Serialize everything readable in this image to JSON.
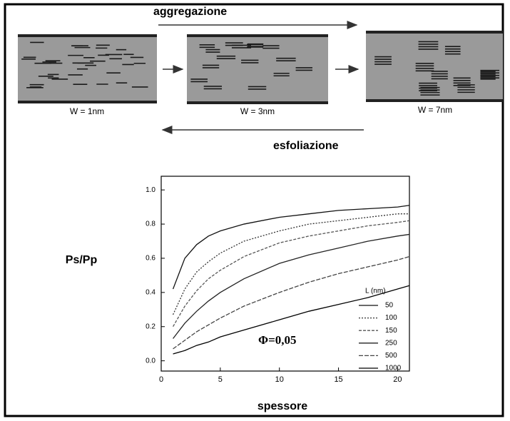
{
  "diagram": {
    "top_arrow_label": "aggregazione",
    "bottom_arrow_label": "esfoliazione",
    "panels": [
      {
        "label": "W = 1nm"
      },
      {
        "label": "W = 3nm"
      },
      {
        "label": "W = 7nm"
      }
    ]
  },
  "chart_data": {
    "type": "line",
    "x_label": "spessore",
    "y_label": "Ps/Pp",
    "annotation": "Φ=0,05",
    "legend_title": "L (nm)",
    "x": [
      1,
      2,
      3,
      4,
      5,
      7,
      10,
      12.5,
      15,
      17.5,
      20,
      21
    ],
    "series": [
      {
        "name": "50",
        "color": "#111111",
        "values": [
          0.42,
          0.6,
          0.68,
          0.73,
          0.76,
          0.8,
          0.84,
          0.86,
          0.88,
          0.89,
          0.9,
          0.91
        ]
      },
      {
        "name": "100",
        "color": "#333333",
        "values": [
          0.27,
          0.42,
          0.52,
          0.58,
          0.63,
          0.7,
          0.76,
          0.8,
          0.82,
          0.84,
          0.86,
          0.86
        ]
      },
      {
        "name": "150",
        "color": "#555555",
        "values": [
          0.2,
          0.32,
          0.41,
          0.48,
          0.53,
          0.61,
          0.69,
          0.73,
          0.76,
          0.79,
          0.81,
          0.82
        ]
      },
      {
        "name": "250",
        "color": "#222222",
        "values": [
          0.13,
          0.22,
          0.29,
          0.35,
          0.4,
          0.48,
          0.57,
          0.62,
          0.66,
          0.7,
          0.73,
          0.74
        ]
      },
      {
        "name": "500",
        "color": "#444444",
        "values": [
          0.07,
          0.12,
          0.17,
          0.21,
          0.25,
          0.32,
          0.4,
          0.46,
          0.51,
          0.55,
          0.59,
          0.61
        ]
      },
      {
        "name": "1000",
        "color": "#000000",
        "values": [
          0.04,
          0.06,
          0.09,
          0.11,
          0.14,
          0.18,
          0.24,
          0.29,
          0.33,
          0.37,
          0.42,
          0.44
        ]
      }
    ],
    "xlim": [
      0,
      21
    ],
    "ylim": [
      -0.06,
      1.08
    ],
    "xticks": [
      0,
      5,
      10,
      15,
      20
    ],
    "yticks": [
      {
        "value": 0,
        "label": "0.0"
      },
      0.2,
      0.4,
      0.6,
      0.8,
      {
        "value": 1,
        "label": "1.0"
      }
    ]
  }
}
